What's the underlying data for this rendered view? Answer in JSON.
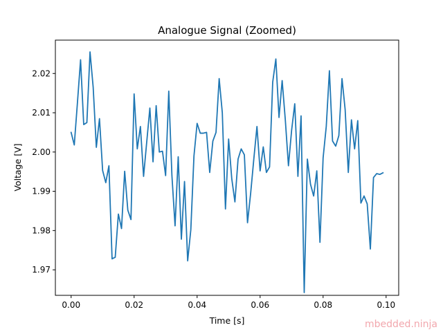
{
  "chart_data": {
    "type": "line",
    "title": "Analogue Signal (Zoomed)",
    "xlabel": "Time [s]",
    "ylabel": "Voltage [V]",
    "xlim": [
      -0.005,
      0.104
    ],
    "ylim": [
      1.9635,
      2.0285
    ],
    "x_ticks": [
      0.0,
      0.02,
      0.04,
      0.06,
      0.08,
      0.1
    ],
    "x_tick_labels": [
      "0.00",
      "0.02",
      "0.04",
      "0.06",
      "0.08",
      "0.10"
    ],
    "y_ticks": [
      1.97,
      1.98,
      1.99,
      2.0,
      2.01,
      2.02
    ],
    "y_tick_labels": [
      "1.97",
      "1.98",
      "1.99",
      "2.00",
      "2.01",
      "2.02"
    ],
    "grid": false,
    "legend": "none",
    "series": [
      {
        "color": "#1f77b4",
        "x": [
          0.0,
          0.001,
          0.002,
          0.003,
          0.004,
          0.005,
          0.006,
          0.007,
          0.008,
          0.009,
          0.01,
          0.011,
          0.012,
          0.013,
          0.014,
          0.015,
          0.016,
          0.017,
          0.018,
          0.019,
          0.02,
          0.021,
          0.022,
          0.023,
          0.024,
          0.025,
          0.026,
          0.027,
          0.028,
          0.029,
          0.03,
          0.031,
          0.032,
          0.033,
          0.034,
          0.035,
          0.036,
          0.037,
          0.038,
          0.039,
          0.04,
          0.041,
          0.042,
          0.043,
          0.044,
          0.045,
          0.046,
          0.047,
          0.048,
          0.049,
          0.05,
          0.051,
          0.052,
          0.053,
          0.054,
          0.055,
          0.056,
          0.057,
          0.058,
          0.059,
          0.06,
          0.061,
          0.062,
          0.063,
          0.064,
          0.065,
          0.066,
          0.067,
          0.068,
          0.069,
          0.07,
          0.071,
          0.072,
          0.073,
          0.074,
          0.075,
          0.076,
          0.077,
          0.078,
          0.079,
          0.08,
          0.081,
          0.082,
          0.083,
          0.084,
          0.085,
          0.086,
          0.087,
          0.088,
          0.089,
          0.09,
          0.091,
          0.092,
          0.093,
          0.094,
          0.095,
          0.096,
          0.097,
          0.098,
          0.099
        ],
        "y": [
          2.005,
          2.0018,
          2.0125,
          2.0235,
          2.007,
          2.0075,
          2.0255,
          2.0165,
          2.0012,
          2.0085,
          1.9953,
          1.9922,
          1.9965,
          1.9728,
          1.9732,
          1.9842,
          1.9805,
          1.9951,
          1.9852,
          1.9828,
          2.0148,
          2.0008,
          2.0065,
          1.9938,
          2.0025,
          2.0112,
          1.9975,
          2.0118,
          2.0,
          2.0002,
          1.994,
          2.0155,
          1.994,
          1.9812,
          1.9988,
          1.9778,
          1.9925,
          1.9723,
          1.9802,
          1.999,
          2.0073,
          2.0048,
          2.0048,
          2.005,
          1.9948,
          2.0028,
          2.005,
          2.0187,
          2.01,
          1.9855,
          2.0033,
          1.9932,
          1.9873,
          1.9982,
          2.0008,
          1.9993,
          1.982,
          1.9895,
          1.9982,
          2.0065,
          1.9952,
          2.0013,
          1.9948,
          1.9962,
          2.0178,
          2.0237,
          2.0088,
          2.0182,
          2.0082,
          1.9965,
          2.0055,
          2.0123,
          1.9938,
          2.0092,
          1.9642,
          1.9982,
          1.9918,
          1.9888,
          1.9952,
          1.977,
          1.9985,
          2.0065,
          2.0207,
          2.0028,
          2.0015,
          2.0042,
          2.0187,
          2.0108,
          1.9948,
          2.0082,
          2.0008,
          2.008,
          1.987,
          1.9888,
          1.9868,
          1.9753,
          1.9935,
          1.9945,
          1.9943,
          1.9947
        ]
      }
    ]
  },
  "watermark": "mbedded.ninja"
}
